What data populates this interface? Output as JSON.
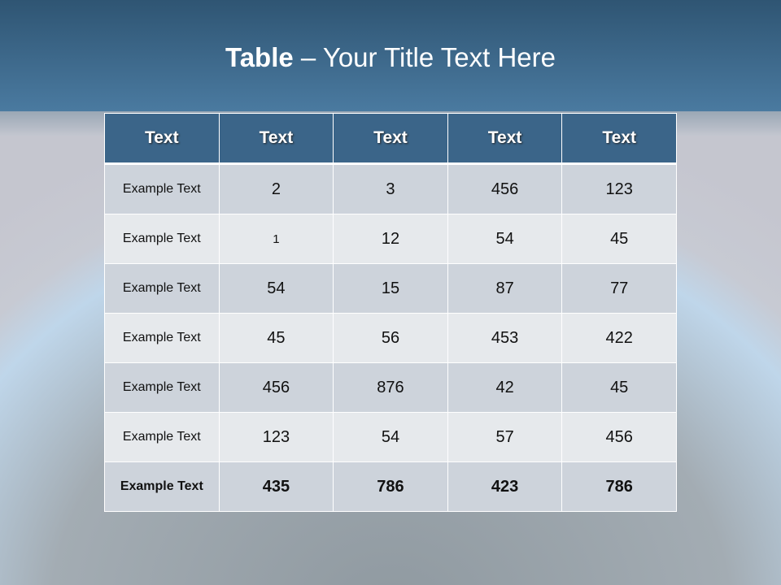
{
  "title": {
    "bold": "Table",
    "rest": " – Your Title Text Here"
  },
  "table": {
    "headers": [
      "Text",
      "Text",
      "Text",
      "Text",
      "Text"
    ],
    "rows": [
      [
        "Example Text",
        "2",
        "3",
        "456",
        "123"
      ],
      [
        "Example Text",
        "1",
        "12",
        "54",
        "45"
      ],
      [
        "Example Text",
        "54",
        "15",
        "87",
        "77"
      ],
      [
        "Example Text",
        "45",
        "56",
        "453",
        "422"
      ],
      [
        "Example Text",
        "456",
        "876",
        "42",
        "45"
      ],
      [
        "Example Text",
        "123",
        "54",
        "57",
        "456"
      ],
      [
        "Example Text",
        "435",
        "786",
        "423",
        "786"
      ]
    ]
  },
  "colors": {
    "header": "#3b6589",
    "row_dark": "#cdd3db",
    "row_light": "#e6e9ec",
    "band": "#3e6a8e"
  }
}
